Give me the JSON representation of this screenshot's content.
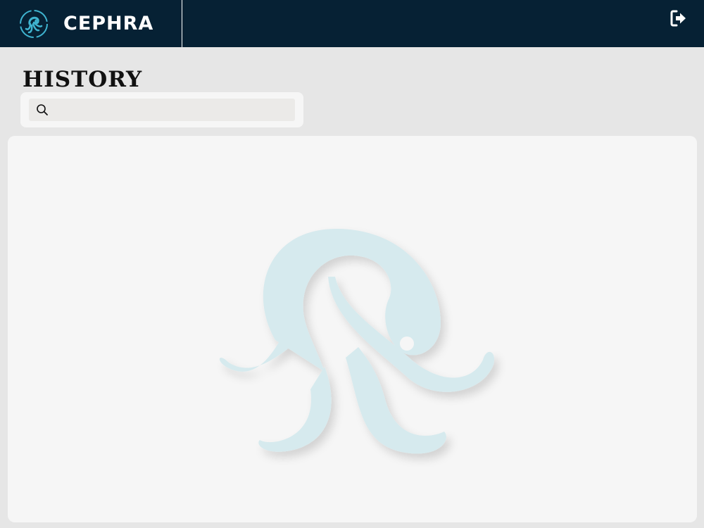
{
  "app": {
    "name": "CEPHRA",
    "logo_icon": "octopus-logo-icon"
  },
  "header": {
    "logout_icon": "sign-out-icon"
  },
  "page": {
    "title": "HISTORY"
  },
  "search": {
    "value": "",
    "placeholder": "",
    "icon": "search-icon"
  },
  "history_panel": {
    "empty_state_icon": "octopus-watermark-icon",
    "entries": []
  },
  "colors": {
    "header_bg": "#062134",
    "page_bg": "#e6e6e6",
    "panel_bg": "#f6f6f6",
    "accent": "#3fb4d0",
    "watermark": "#d6eaee"
  }
}
